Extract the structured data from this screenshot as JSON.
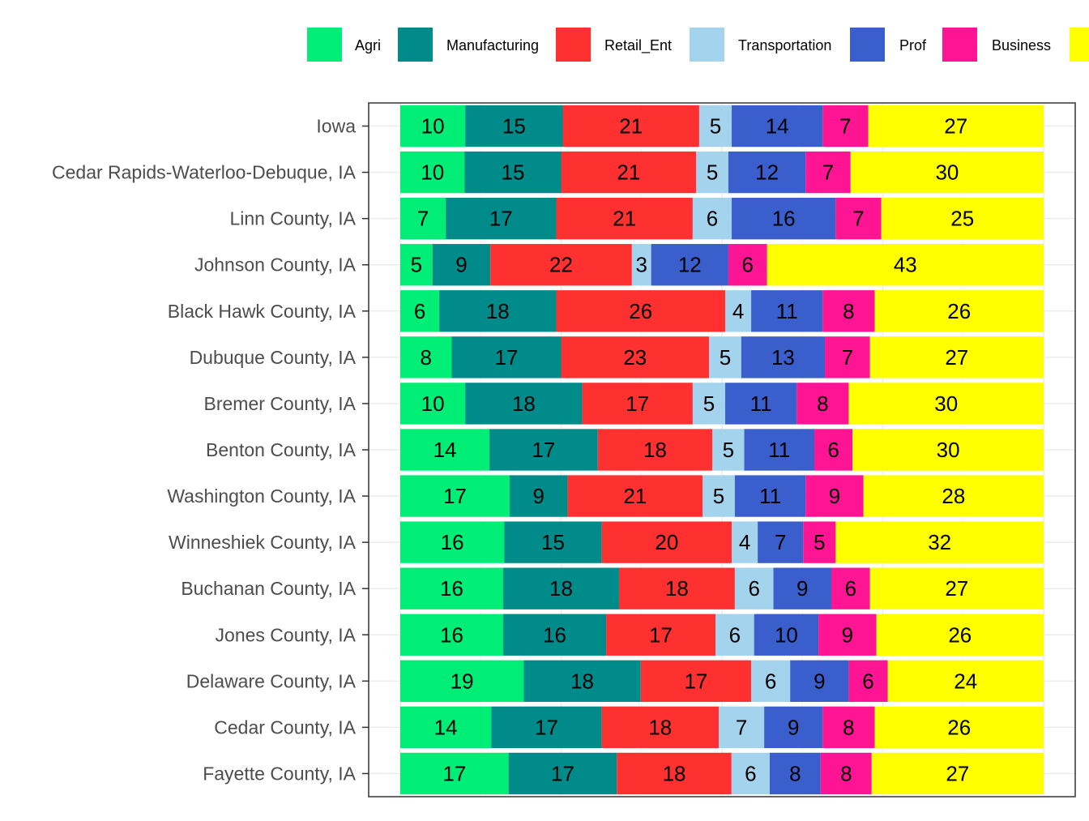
{
  "chart_data": {
    "type": "bar",
    "orientation": "horizontal",
    "stacked": true,
    "title": "",
    "xlabel": "",
    "ylabel": "",
    "grid": true,
    "legend_position": "top",
    "categories": [
      "Iowa",
      "Cedar Rapids-Waterloo-Debuque, IA",
      "Linn County, IA",
      "Johnson County, IA",
      "Black Hawk County, IA",
      "Dubuque County, IA",
      "Bremer County, IA",
      "Benton County, IA",
      "Washington County, IA",
      "Winneshiek County, IA",
      "Buchanan County, IA",
      "Jones County, IA",
      "Delaware County, IA",
      "Cedar County, IA",
      "Fayette County, IA"
    ],
    "series": [
      {
        "name": "Agri",
        "color": "#00EE76",
        "values": [
          10,
          10,
          7,
          5,
          6,
          8,
          10,
          14,
          17,
          16,
          16,
          16,
          19,
          14,
          17
        ]
      },
      {
        "name": "Manufacturing",
        "color": "#008B8B",
        "values": [
          15,
          15,
          17,
          9,
          18,
          17,
          18,
          17,
          9,
          15,
          18,
          16,
          18,
          17,
          17
        ]
      },
      {
        "name": "Retail_Ent",
        "color": "#FF3030",
        "values": [
          21,
          21,
          21,
          22,
          26,
          23,
          17,
          18,
          21,
          20,
          18,
          17,
          17,
          18,
          18
        ]
      },
      {
        "name": "Transportation",
        "color": "#A4D3EE",
        "values": [
          5,
          5,
          6,
          3,
          4,
          5,
          5,
          5,
          5,
          4,
          6,
          6,
          6,
          7,
          6
        ]
      },
      {
        "name": "Prof",
        "color": "#3A5FCD",
        "values": [
          14,
          12,
          16,
          12,
          11,
          13,
          11,
          11,
          11,
          7,
          9,
          10,
          9,
          9,
          8
        ]
      },
      {
        "name": "Business",
        "color": "#FF1493",
        "values": [
          7,
          7,
          7,
          6,
          8,
          7,
          8,
          6,
          9,
          5,
          6,
          9,
          6,
          8,
          8
        ]
      },
      {
        "name": "",
        "color": "#FFFF00",
        "values": [
          27,
          30,
          25,
          43,
          26,
          27,
          30,
          30,
          28,
          32,
          27,
          26,
          24,
          26,
          27
        ]
      }
    ]
  }
}
